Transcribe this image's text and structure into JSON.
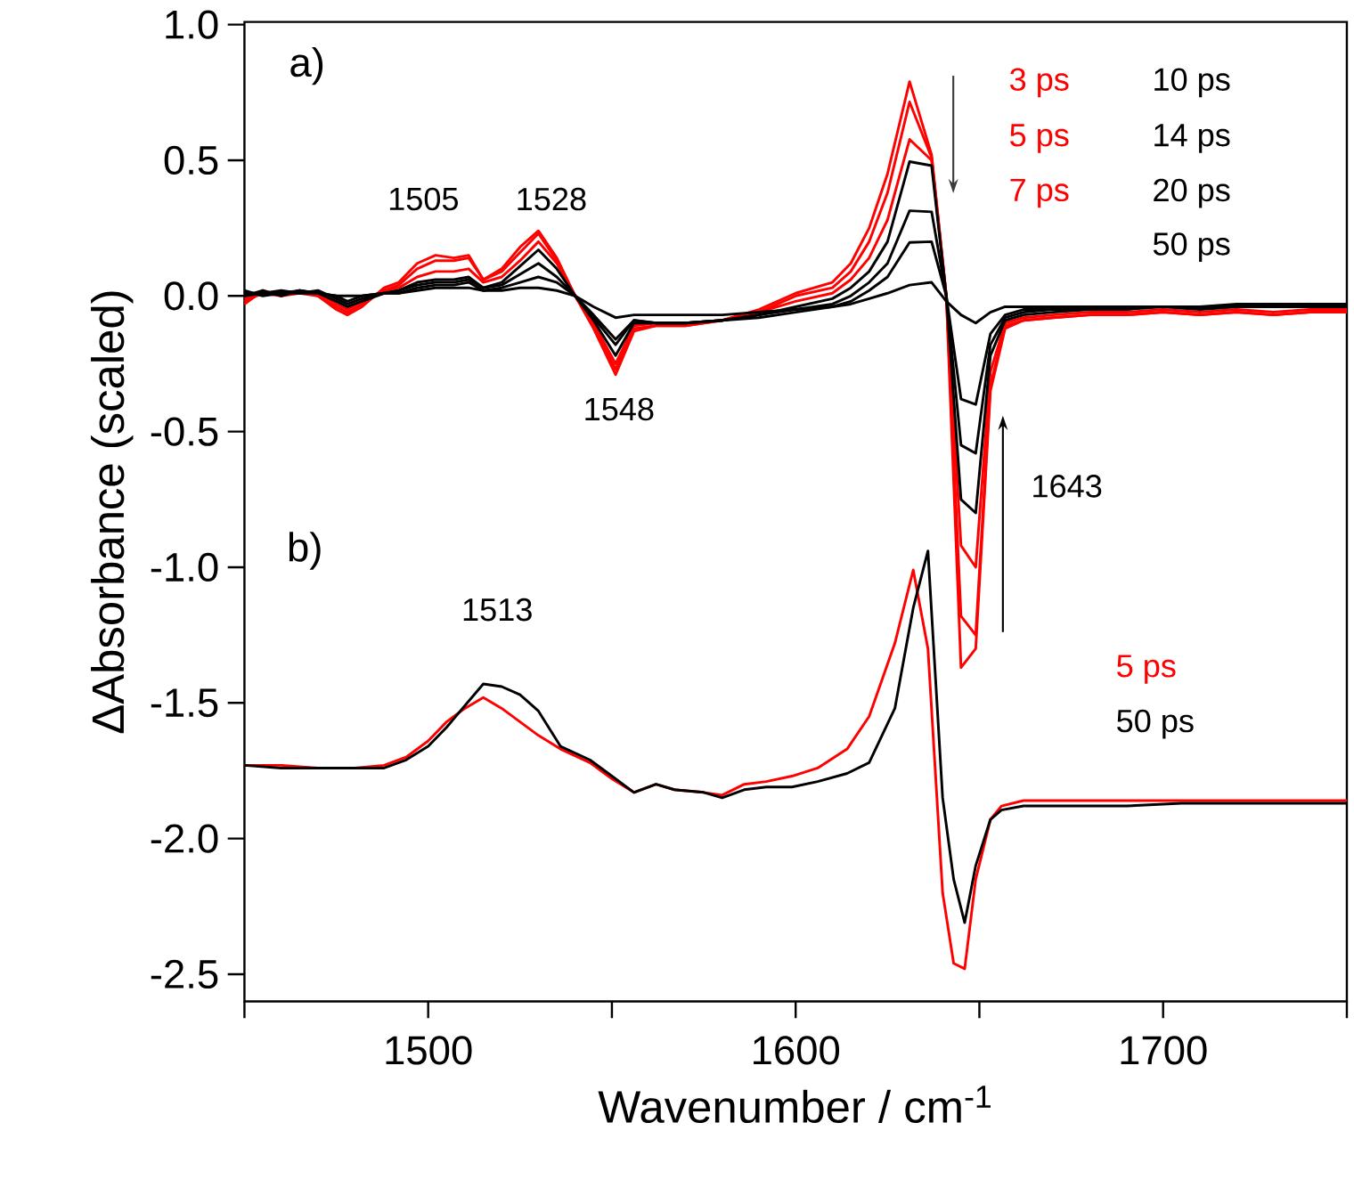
{
  "chart_data": {
    "type": "line",
    "xlabel": "Wavenumber / cm$^{-1}$",
    "ylabel": "ΔAbsorbance (scaled)",
    "xlim": [
      1450,
      1750
    ],
    "ylim": [
      -2.6,
      1.01
    ],
    "xticks": [
      {
        "value": 1450,
        "label": null
      },
      1500,
      {
        "value": 1550,
        "label": null
      },
      1600,
      {
        "value": 1650,
        "label": null
      },
      1700,
      {
        "value": 1750,
        "label": null
      }
    ],
    "yticks": [
      {
        "value": 1,
        "label": "1.0"
      },
      0.5,
      {
        "value": 0,
        "label": "0.0"
      },
      -0.5,
      {
        "value": -1,
        "label": "-1.0"
      },
      -1.5,
      {
        "value": -2,
        "label": "-2.0"
      },
      -2.5
    ],
    "grid": false,
    "legend": false,
    "x": [
      1450,
      1455,
      1460,
      1465,
      1470,
      1475,
      1478,
      1482,
      1488,
      1492,
      1497,
      1502,
      1507,
      1511,
      1515,
      1520,
      1525,
      1530,
      1535,
      1540,
      1545,
      1551,
      1556,
      1562,
      1570,
      1580,
      1590,
      1600,
      1610,
      1615,
      1620,
      1625,
      1631,
      1637,
      1641,
      1645,
      1649,
      1653,
      1657,
      1662,
      1670,
      1680,
      1690,
      1700,
      1710,
      1720,
      1730,
      1740,
      1750
    ],
    "series": [
      {
        "color": "#ff0000",
        "values": [
          -0.03,
          0.02,
          0.0,
          0.02,
          0.0,
          -0.05,
          -0.07,
          -0.04,
          0.03,
          0.05,
          0.12,
          0.15,
          0.14,
          0.15,
          0.06,
          0.1,
          0.18,
          0.24,
          0.14,
          0.0,
          -0.12,
          -0.29,
          -0.13,
          -0.11,
          -0.11,
          -0.09,
          -0.05,
          0.01,
          0.05,
          0.12,
          0.25,
          0.45,
          0.79,
          0.52,
          0.0,
          -1.37,
          -1.3,
          -0.35,
          -0.12,
          -0.09,
          -0.08,
          -0.07,
          -0.07,
          -0.06,
          -0.07,
          -0.06,
          -0.07,
          -0.06,
          -0.06
        ]
      },
      {
        "color": "#ff0000",
        "values": [
          -0.02,
          0.01,
          0.01,
          0.01,
          0.0,
          -0.04,
          -0.06,
          -0.03,
          0.02,
          0.04,
          0.1,
          0.13,
          0.13,
          0.14,
          0.06,
          0.09,
          0.16,
          0.23,
          0.13,
          0.0,
          -0.11,
          -0.27,
          -0.12,
          -0.11,
          -0.11,
          -0.09,
          -0.06,
          0.0,
          0.03,
          0.09,
          0.2,
          0.38,
          0.715,
          0.51,
          0.0,
          -1.18,
          -1.25,
          -0.33,
          -0.11,
          -0.09,
          -0.08,
          -0.07,
          -0.07,
          -0.06,
          -0.07,
          -0.06,
          -0.07,
          -0.06,
          -0.06
        ]
      },
      {
        "color": "#ff0000",
        "values": [
          -0.01,
          0.01,
          0.0,
          0.01,
          0.01,
          -0.03,
          -0.05,
          -0.02,
          0.02,
          0.03,
          0.07,
          0.09,
          0.09,
          0.1,
          0.05,
          0.07,
          0.13,
          0.2,
          0.12,
          0.0,
          -0.1,
          -0.25,
          -0.11,
          -0.1,
          -0.1,
          -0.09,
          -0.06,
          -0.02,
          0.01,
          0.06,
          0.14,
          0.28,
          0.577,
          0.5,
          0.0,
          -0.92,
          -1.0,
          -0.28,
          -0.1,
          -0.08,
          -0.07,
          -0.06,
          -0.06,
          -0.05,
          -0.06,
          -0.05,
          -0.06,
          -0.05,
          -0.05
        ]
      },
      {
        "color": "#000000",
        "values": [
          0.0,
          0.02,
          0.0,
          0.02,
          0.01,
          -0.02,
          -0.04,
          -0.02,
          0.01,
          0.02,
          0.05,
          0.06,
          0.06,
          0.07,
          0.03,
          0.05,
          0.11,
          0.17,
          0.1,
          0.0,
          -0.09,
          -0.22,
          -0.1,
          -0.1,
          -0.1,
          -0.09,
          -0.07,
          -0.04,
          -0.01,
          0.03,
          0.09,
          0.2,
          0.495,
          0.48,
          0.0,
          -0.75,
          -0.8,
          -0.22,
          -0.09,
          -0.07,
          -0.06,
          -0.05,
          -0.05,
          -0.04,
          -0.05,
          -0.04,
          -0.04,
          -0.04,
          -0.04
        ]
      },
      {
        "color": "#000000",
        "values": [
          0.01,
          0.01,
          0.02,
          0.01,
          0.02,
          -0.01,
          -0.03,
          -0.01,
          0.01,
          0.02,
          0.04,
          0.05,
          0.05,
          0.06,
          0.03,
          0.04,
          0.08,
          0.12,
          0.07,
          0.0,
          -0.08,
          -0.18,
          -0.09,
          -0.1,
          -0.1,
          -0.09,
          -0.07,
          -0.05,
          -0.03,
          0.0,
          0.05,
          0.12,
          0.314,
          0.31,
          0.0,
          -0.55,
          -0.58,
          -0.18,
          -0.08,
          -0.06,
          -0.05,
          -0.05,
          -0.04,
          -0.04,
          -0.04,
          -0.04,
          -0.04,
          -0.03,
          -0.03
        ]
      },
      {
        "color": "#000000",
        "values": [
          0.02,
          0.0,
          0.01,
          0.02,
          0.01,
          0.0,
          -0.02,
          0.0,
          0.01,
          0.01,
          0.03,
          0.04,
          0.04,
          0.05,
          0.02,
          0.03,
          0.05,
          0.07,
          0.05,
          0.0,
          -0.07,
          -0.16,
          -0.09,
          -0.1,
          -0.1,
          -0.09,
          -0.08,
          -0.06,
          -0.04,
          -0.02,
          0.02,
          0.07,
          0.197,
          0.2,
          0.0,
          -0.38,
          -0.4,
          -0.14,
          -0.07,
          -0.05,
          -0.05,
          -0.04,
          -0.04,
          -0.04,
          -0.04,
          -0.04,
          -0.03,
          -0.03,
          -0.03
        ]
      },
      {
        "color": "#000000",
        "values": [
          0.0,
          0.01,
          0.01,
          0.01,
          0.01,
          0.0,
          0.0,
          0.0,
          0.01,
          0.01,
          0.02,
          0.03,
          0.03,
          0.03,
          0.02,
          0.02,
          0.03,
          0.03,
          0.02,
          0.0,
          -0.04,
          -0.08,
          -0.07,
          -0.07,
          -0.07,
          -0.07,
          -0.06,
          -0.05,
          -0.04,
          -0.03,
          -0.01,
          0.01,
          0.04,
          0.05,
          -0.02,
          -0.07,
          -0.1,
          -0.06,
          -0.04,
          -0.04,
          -0.04,
          -0.04,
          -0.04,
          -0.04,
          -0.04,
          -0.03,
          -0.03,
          -0.03,
          -0.03
        ]
      },
      {
        "color": "#ff0000",
        "x": [
          1450,
          1460,
          1470,
          1480,
          1488,
          1494,
          1500,
          1505,
          1510,
          1515,
          1520,
          1525,
          1530,
          1536,
          1544,
          1550,
          1556,
          1562,
          1567,
          1575,
          1580,
          1586,
          1592,
          1599,
          1606,
          1614,
          1620,
          1627,
          1632,
          1636,
          1640,
          1643,
          1646,
          1649,
          1653,
          1656,
          1662,
          1675,
          1690,
          1705,
          1720,
          1735,
          1750
        ],
        "values": [
          -1.73,
          -1.73,
          -1.74,
          -1.74,
          -1.73,
          -1.7,
          -1.64,
          -1.57,
          -1.52,
          -1.48,
          -1.52,
          -1.57,
          -1.62,
          -1.67,
          -1.72,
          -1.78,
          -1.83,
          -1.8,
          -1.82,
          -1.83,
          -1.84,
          -1.8,
          -1.79,
          -1.77,
          -1.74,
          -1.67,
          -1.55,
          -1.28,
          -1.01,
          -1.3,
          -2.2,
          -2.46,
          -2.48,
          -2.15,
          -1.93,
          -1.88,
          -1.86,
          -1.86,
          -1.86,
          -1.86,
          -1.86,
          -1.86,
          -1.86
        ]
      },
      {
        "color": "#000000",
        "x": [
          1450,
          1460,
          1470,
          1480,
          1488,
          1494,
          1500,
          1505,
          1510,
          1515,
          1520,
          1525,
          1530,
          1536,
          1544,
          1550,
          1556,
          1562,
          1567,
          1575,
          1580,
          1586,
          1592,
          1599,
          1606,
          1614,
          1620,
          1627,
          1632,
          1636,
          1640,
          1643,
          1646,
          1649,
          1653,
          1656,
          1662,
          1675,
          1690,
          1705,
          1720,
          1735,
          1750
        ],
        "values": [
          -1.73,
          -1.74,
          -1.74,
          -1.74,
          -1.74,
          -1.71,
          -1.66,
          -1.59,
          -1.51,
          -1.43,
          -1.44,
          -1.47,
          -1.53,
          -1.66,
          -1.71,
          -1.77,
          -1.83,
          -1.8,
          -1.82,
          -1.83,
          -1.85,
          -1.82,
          -1.81,
          -1.81,
          -1.79,
          -1.76,
          -1.72,
          -1.52,
          -1.15,
          -0.94,
          -1.85,
          -2.15,
          -2.31,
          -2.1,
          -1.93,
          -1.895,
          -1.88,
          -1.88,
          -1.88,
          -1.87,
          -1.87,
          -1.87,
          -1.87
        ]
      }
    ],
    "annotations": [
      "a)",
      "b)",
      {
        "text": "1505",
        "x": 1505,
        "y": 0.15
      },
      {
        "text": "1528",
        "x": 1530,
        "y": 0.24
      },
      {
        "text": "1548",
        "x": 1551,
        "y": -0.29
      },
      {
        "text": "1513",
        "x": 1516,
        "y": -1.42
      },
      "1643",
      "3 ps",
      "5 ps",
      "7 ps",
      "10 ps",
      "14 ps",
      "20 ps",
      "50 ps",
      "5 ps",
      "50 ps"
    ]
  }
}
